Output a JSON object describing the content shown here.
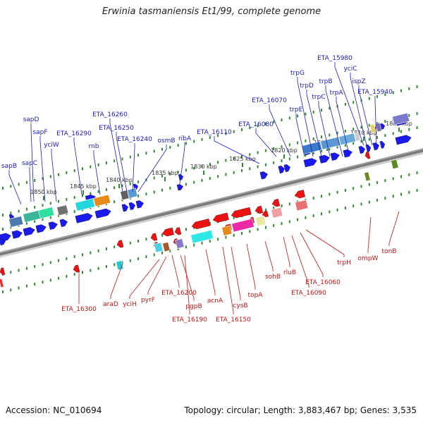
{
  "title": "Erwinia tasmaniensis Et1/99, complete genome",
  "footer": {
    "accession": "Accession: NC_010694",
    "topology": "Topology: circular; Length: 3,883,467 bp; Genes: 3,535"
  },
  "colors": {
    "forward_label": "#1a1acc",
    "reverse_label": "#cc1111",
    "forward_gene": "#1a1aee",
    "reverse_gene": "#ee1111",
    "backbone": "#7a7a7a",
    "tick": "#2e8b2e",
    "kbp_text": "#333333"
  },
  "kbp_ticks": [
    "1805 kbp",
    "1810 kbp",
    "1815 kbp",
    "1820 kbp",
    "1825 kbp",
    "1830 kbp",
    "1835 kbp",
    "1840 kbp",
    "1845 kbp",
    "1850 kbp"
  ],
  "forward_genes": [
    "ETA_15980",
    "yciC",
    "ispZ",
    "ETA_15940",
    "trpG",
    "trpD",
    "trpB",
    "trpA",
    "trpC",
    "ETA_16070",
    "trpE",
    "ETA_16080",
    "ETA_16110",
    "ribA",
    "osmB",
    "ETA_16240",
    "ETA_16250",
    "ETA_16260",
    "rnb",
    "ETA_16290",
    "yciW",
    "sapF",
    "sapD",
    "sapC",
    "sapB"
  ],
  "reverse_genes": [
    "ETA_16300",
    "araD",
    "yciH",
    "pyrF",
    "ETA_16200",
    "pgpB",
    "ETA_16190",
    "acnA",
    "ETA_16150",
    "cysB",
    "topA",
    "sohB",
    "rluB",
    "ETA_16090",
    "ETA_16060",
    "trpH",
    "ompW",
    "tonB"
  ]
}
